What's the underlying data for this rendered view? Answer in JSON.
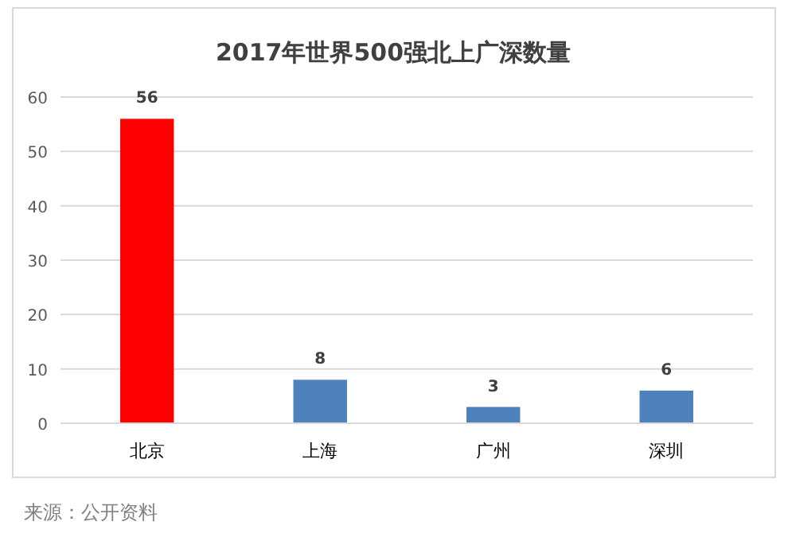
{
  "chart_data": {
    "type": "bar",
    "title": "2017年世界500强北上广深数量",
    "categories": [
      "北京",
      "上海",
      "广州",
      "深圳"
    ],
    "values": [
      56,
      8,
      3,
      6
    ],
    "colors": [
      "#ff0000",
      "#4f81bd",
      "#4f81bd",
      "#4f81bd"
    ],
    "ylim": [
      0,
      60
    ],
    "yticks": [
      0,
      10,
      20,
      30,
      40,
      50,
      60
    ],
    "grid": "y",
    "data_labels": true,
    "annotations": [
      "来源：公开资料"
    ]
  }
}
